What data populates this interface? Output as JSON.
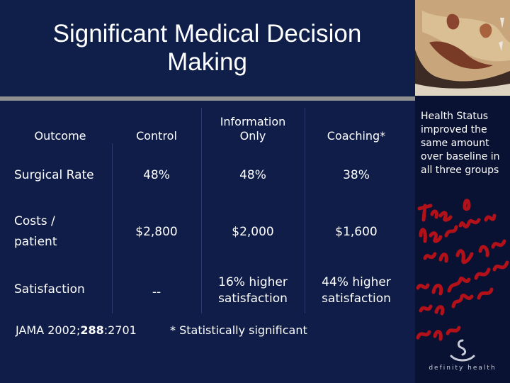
{
  "slide": {
    "title": "Significant Medical Decision Making"
  },
  "table": {
    "headers": [
      "Outcome",
      "Control",
      "Information Only",
      "Coaching*"
    ],
    "rows": [
      {
        "label": "Surgical Rate",
        "control": "48%",
        "info": "48%",
        "coaching": "38%"
      },
      {
        "label": "Costs / patient",
        "control": "$2,800",
        "info": "$2,000",
        "coaching": "$1,600"
      },
      {
        "label": "Satisfaction",
        "control": "--",
        "info": "16% higher satisfaction",
        "coaching": "44% higher satisfaction"
      }
    ]
  },
  "footer": {
    "citation_prefix": "JAMA 2002;",
    "citation_volume": "288",
    "citation_suffix": ":2701",
    "note": "* Statistically significant"
  },
  "sidebar": {
    "text": "Health Status improved the same amount over baseline in all three groups",
    "brand": "definity health",
    "handwriting": "The is how that we need to broaden of a farce in our on"
  },
  "colors": {
    "background": "#0f1d48",
    "sidebar": "#0a1233",
    "rule": "#8f8f8f",
    "handwriting": "#b3111a",
    "art": "#c8a57a"
  }
}
